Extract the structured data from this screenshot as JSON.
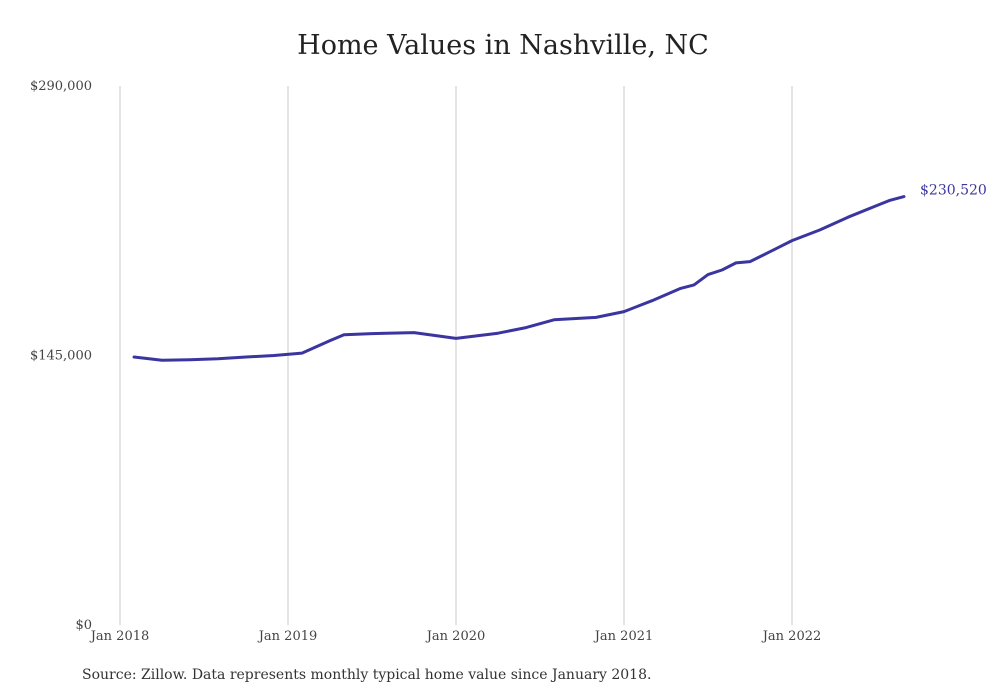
{
  "chart_data": {
    "type": "line",
    "title": "Home Values in Nashville, NC",
    "source": "Source: Zillow. Data represents monthly typical home value since January 2018.",
    "xlabel": "",
    "ylabel": "",
    "ylim": [
      0,
      290000
    ],
    "yticks": [
      {
        "value": 0,
        "label": "$0"
      },
      {
        "value": 145000,
        "label": "$145,000"
      },
      {
        "value": 290000,
        "label": "$290,000"
      }
    ],
    "xticks": [
      {
        "value": "2018-01",
        "label": "Jan 2018"
      },
      {
        "value": "2019-01",
        "label": "Jan 2019"
      },
      {
        "value": "2020-01",
        "label": "Jan 2020"
      },
      {
        "value": "2021-01",
        "label": "Jan 2021"
      },
      {
        "value": "2022-01",
        "label": "Jan 2022"
      }
    ],
    "grid": "vertical",
    "series": [
      {
        "color": "#3b35a0",
        "end_label": "$230,520",
        "points": [
          [
            "2018-02",
            144200
          ],
          [
            "2018-04",
            142400
          ],
          [
            "2018-06",
            142700
          ],
          [
            "2018-08",
            143200
          ],
          [
            "2018-10",
            144200
          ],
          [
            "2018-12",
            145000
          ],
          [
            "2019-02",
            146300
          ],
          [
            "2019-04",
            153000
          ],
          [
            "2019-05",
            156200
          ],
          [
            "2019-07",
            156800
          ],
          [
            "2019-10",
            157300
          ],
          [
            "2020-01",
            154200
          ],
          [
            "2020-04",
            157000
          ],
          [
            "2020-06",
            160000
          ],
          [
            "2020-08",
            164200
          ],
          [
            "2020-11",
            165500
          ],
          [
            "2021-01",
            168600
          ],
          [
            "2021-03",
            174500
          ],
          [
            "2021-05",
            181000
          ],
          [
            "2021-06",
            183000
          ],
          [
            "2021-07",
            188500
          ],
          [
            "2021-08",
            191000
          ],
          [
            "2021-09",
            194800
          ],
          [
            "2021-10",
            195500
          ],
          [
            "2021-12",
            203000
          ],
          [
            "2022-01",
            206800
          ],
          [
            "2022-03",
            212600
          ],
          [
            "2022-05",
            219400
          ],
          [
            "2022-07",
            225500
          ],
          [
            "2022-08",
            228500
          ],
          [
            "2022-09",
            230520
          ]
        ]
      }
    ]
  }
}
